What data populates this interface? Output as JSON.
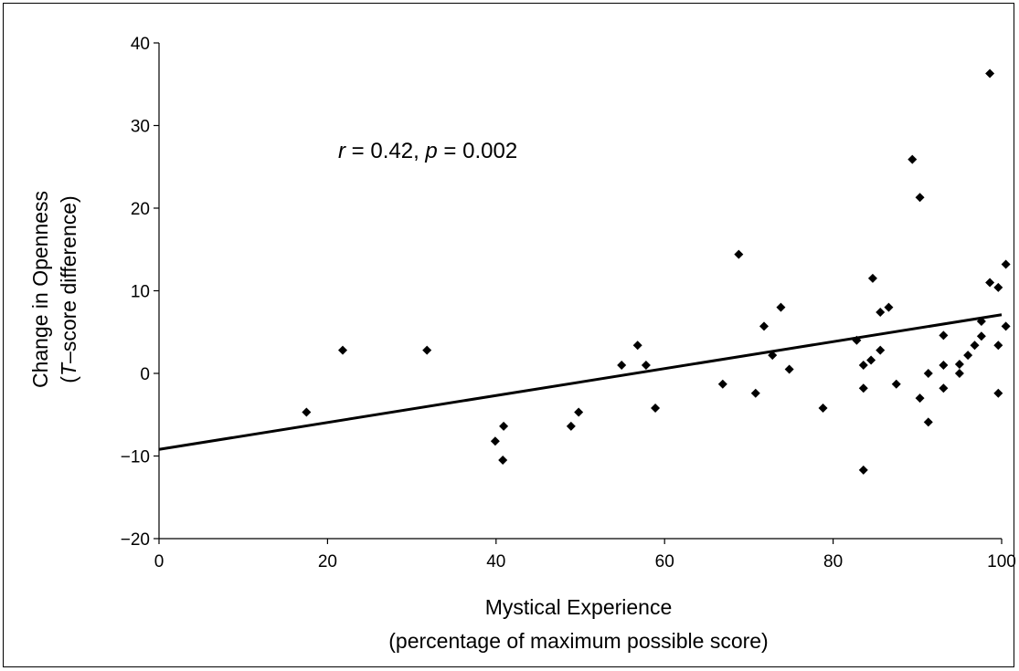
{
  "chart_data": {
    "type": "scatter",
    "title": "",
    "xlabel_line1": "Mystical Experience",
    "xlabel_line2": "(percentage of maximum possible score)",
    "ylabel_line1": "Change in Openness",
    "ylabel_line2_open": "(",
    "ylabel_line2_italic": "T",
    "ylabel_line2_rest": "–score difference)",
    "annotation": {
      "r_symbol": "r",
      "r_text": " = 0.42, ",
      "p_symbol": "p",
      "p_text": " = 0.002"
    },
    "xlim": [
      0,
      100
    ],
    "ylim": [
      -20,
      40
    ],
    "x_ticks": [
      0,
      20,
      40,
      60,
      80,
      100
    ],
    "x_tick_labels": [
      "0",
      "20",
      "40",
      "60",
      "80",
      "100"
    ],
    "y_ticks": [
      -20,
      -10,
      0,
      10,
      20,
      30,
      40
    ],
    "y_tick_labels": [
      "−20",
      "−10",
      "0",
      "10",
      "20",
      "30",
      "40"
    ],
    "grid": false,
    "marker": "diamond",
    "marker_color": "#000000",
    "trendline": {
      "x": [
        0,
        100
      ],
      "y": [
        -9.2,
        7.1
      ]
    },
    "points": [
      [
        17.5,
        -4.7
      ],
      [
        21.8,
        2.8
      ],
      [
        31.8,
        2.8
      ],
      [
        39.9,
        -8.2
      ],
      [
        40.8,
        -10.5
      ],
      [
        40.9,
        -6.4
      ],
      [
        48.9,
        -6.4
      ],
      [
        49.8,
        -4.7
      ],
      [
        54.9,
        1.0
      ],
      [
        56.8,
        3.4
      ],
      [
        57.8,
        1.0
      ],
      [
        58.9,
        -4.2
      ],
      [
        66.9,
        -1.3
      ],
      [
        68.8,
        14.4
      ],
      [
        70.8,
        -2.4
      ],
      [
        71.8,
        5.7
      ],
      [
        72.8,
        2.2
      ],
      [
        73.8,
        8.0
      ],
      [
        74.8,
        0.5
      ],
      [
        78.8,
        -4.2
      ],
      [
        82.8,
        4.0
      ],
      [
        83.6,
        1.0
      ],
      [
        83.6,
        -1.8
      ],
      [
        83.6,
        -11.7
      ],
      [
        84.5,
        1.6
      ],
      [
        84.7,
        11.5
      ],
      [
        85.6,
        2.8
      ],
      [
        85.6,
        7.4
      ],
      [
        86.6,
        8.0
      ],
      [
        87.5,
        -1.3
      ],
      [
        89.4,
        25.9
      ],
      [
        90.3,
        21.3
      ],
      [
        90.3,
        -3.0
      ],
      [
        91.3,
        0.0
      ],
      [
        91.3,
        -5.9
      ],
      [
        93.1,
        4.6
      ],
      [
        93.1,
        1.0
      ],
      [
        93.1,
        -1.8
      ],
      [
        95.0,
        1.1
      ],
      [
        95.0,
        0.0
      ],
      [
        96.0,
        2.2
      ],
      [
        96.8,
        3.4
      ],
      [
        97.6,
        6.3
      ],
      [
        97.6,
        4.5
      ],
      [
        98.6,
        36.3
      ],
      [
        98.6,
        11.0
      ],
      [
        99.6,
        10.4
      ],
      [
        99.6,
        3.4
      ],
      [
        99.6,
        -2.4
      ],
      [
        100.5,
        13.2
      ],
      [
        100.5,
        5.7
      ]
    ]
  }
}
